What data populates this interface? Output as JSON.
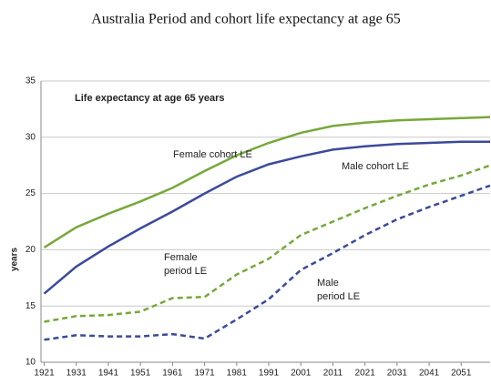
{
  "chart_data": {
    "type": "line",
    "title": "Australia Period and cohort life expectancy at age 65",
    "subtitle": "Life expectancy at age 65 years",
    "ylabel": "years",
    "x": [
      1921,
      1931,
      1941,
      1951,
      1961,
      1971,
      1981,
      1991,
      2001,
      2011,
      2021,
      2031,
      2041,
      2051,
      2060
    ],
    "xlim": [
      1920,
      2060
    ],
    "xticks": [
      1921,
      1931,
      1941,
      1951,
      1961,
      1971,
      1981,
      1991,
      2001,
      2011,
      2021,
      2031,
      2041,
      2051
    ],
    "ylim": [
      10,
      35
    ],
    "yticks": [
      10,
      15,
      20,
      25,
      30,
      35
    ],
    "grid": true,
    "series": [
      {
        "label": [
          "Female cohort LE"
        ],
        "color": "#77a83a",
        "dashed": false,
        "values": [
          20.2,
          22.0,
          23.2,
          24.3,
          25.5,
          27.0,
          28.4,
          29.5,
          30.4,
          31.0,
          31.3,
          31.5,
          31.6,
          31.7,
          31.8
        ]
      },
      {
        "label": [
          "Male cohort LE"
        ],
        "color": "#3b4a9c",
        "dashed": false,
        "values": [
          16.1,
          18.5,
          20.3,
          21.9,
          23.4,
          25.0,
          26.5,
          27.6,
          28.3,
          28.9,
          29.2,
          29.4,
          29.5,
          29.6,
          29.6
        ]
      },
      {
        "label": [
          "Female",
          "period LE"
        ],
        "color": "#77a83a",
        "dashed": true,
        "values": [
          13.6,
          14.1,
          14.2,
          14.5,
          15.7,
          15.8,
          17.8,
          19.2,
          21.3,
          22.5,
          23.7,
          24.8,
          25.8,
          26.6,
          27.5
        ]
      },
      {
        "label": [
          "Male",
          "period LE"
        ],
        "color": "#3b4a9c",
        "dashed": true,
        "values": [
          12.0,
          12.4,
          12.3,
          12.3,
          12.5,
          12.1,
          13.8,
          15.6,
          18.2,
          19.7,
          21.3,
          22.7,
          23.8,
          24.8,
          25.7
        ]
      }
    ]
  }
}
